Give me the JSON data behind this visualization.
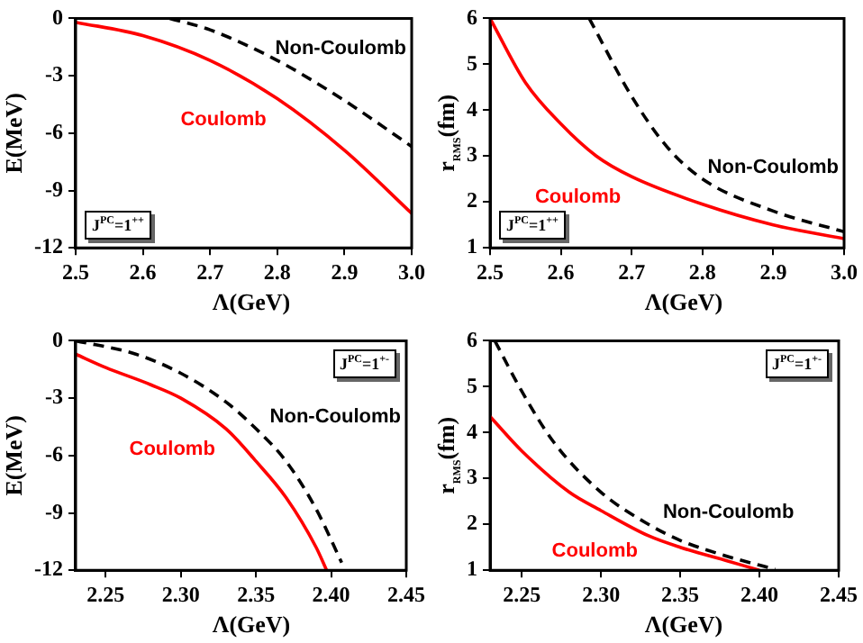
{
  "chart_data": [
    {
      "type": "line",
      "xlabel": "Λ(GeV)",
      "ylabel": "E(MeV)",
      "xlim": [
        2.5,
        3.0
      ],
      "ylim": [
        -12,
        0
      ],
      "xticks": [
        2.5,
        2.6,
        2.7,
        2.8,
        2.9,
        {
          "value": 3.0,
          "label": "3.0"
        }
      ],
      "yticks": [
        -12,
        -9,
        -6,
        -3,
        0
      ],
      "grid": false,
      "legend": false,
      "marker": "none",
      "annotations": [
        "J$^{PC}$=1$^{++}$"
      ],
      "series": [
        {
          "name": "Coulomb",
          "color": "#ff0000",
          "line_style": "solid",
          "x": [
            2.5,
            2.6,
            2.7,
            2.8,
            2.9,
            3.0
          ],
          "values": [
            -0.2,
            -0.9,
            -2.2,
            -4.2,
            -6.9,
            -10.2
          ]
        },
        {
          "name": "Non-Coulomb",
          "color": "#000000",
          "line_style": "dashed",
          "x": [
            2.64,
            2.7,
            2.8,
            2.9,
            3.0
          ],
          "values": [
            0,
            -0.6,
            -2.2,
            -4.3,
            -6.7
          ]
        }
      ]
    },
    {
      "type": "line",
      "xlabel": "Λ(GeV)",
      "ylabel": "r$_{RMS}$(fm)",
      "xlim": [
        2.5,
        3.0
      ],
      "ylim": [
        1,
        6
      ],
      "xticks": [
        2.5,
        2.6,
        2.7,
        2.8,
        2.9,
        {
          "value": 3.0,
          "label": "3.0"
        }
      ],
      "yticks": [
        1,
        2,
        3,
        4,
        5,
        6
      ],
      "grid": false,
      "legend": false,
      "marker": "none",
      "annotations": [
        "J$^{PC}$=1$^{++}$"
      ],
      "series": [
        {
          "name": "Coulomb",
          "color": "#ff0000",
          "line_style": "solid",
          "x": [
            2.5,
            2.55,
            2.6,
            2.65,
            2.7,
            2.8,
            2.9,
            3.0
          ],
          "values": [
            6.0,
            4.6,
            3.7,
            3.0,
            2.55,
            1.95,
            1.5,
            1.2
          ]
        },
        {
          "name": "Non-Coulomb",
          "color": "#000000",
          "line_style": "dashed",
          "x": [
            2.64,
            2.7,
            2.75,
            2.8,
            2.9,
            3.0
          ],
          "values": [
            6.0,
            4.3,
            3.2,
            2.5,
            1.8,
            1.35
          ]
        }
      ]
    },
    {
      "type": "line",
      "xlabel": "Λ(GeV)",
      "ylabel": "E(MeV)",
      "xlim": [
        2.23,
        2.45
      ],
      "ylim": [
        -12,
        0
      ],
      "xticks": [
        2.25,
        {
          "value": 2.3,
          "label": "2.30"
        },
        2.35,
        {
          "value": 2.4,
          "label": "2.40"
        },
        2.45
      ],
      "yticks": [
        -12,
        -9,
        -6,
        -3,
        0
      ],
      "grid": false,
      "legend": false,
      "marker": "none",
      "annotations": [
        "J$^{PC}$=1$^{+-}$"
      ],
      "series": [
        {
          "name": "Coulomb",
          "color": "#ff0000",
          "line_style": "solid",
          "x": [
            2.23,
            2.25,
            2.28,
            2.3,
            2.33,
            2.35,
            2.37,
            2.39,
            2.397
          ],
          "values": [
            -0.7,
            -1.4,
            -2.3,
            -3.0,
            -4.6,
            -6.3,
            -8.2,
            -10.8,
            -12
          ]
        },
        {
          "name": "Non-Coulomb",
          "color": "#000000",
          "line_style": "dashed",
          "x": [
            2.23,
            2.27,
            2.3,
            2.33,
            2.35,
            2.37,
            2.39,
            2.407
          ],
          "values": [
            0,
            -0.7,
            -1.7,
            -3.2,
            -4.6,
            -6.3,
            -8.8,
            -11.6
          ]
        }
      ]
    },
    {
      "type": "line",
      "xlabel": "Λ(GeV)",
      "ylabel": "r$_{RMS}$(fm)",
      "xlim": [
        2.23,
        2.45
      ],
      "ylim": [
        1,
        6
      ],
      "xticks": [
        2.25,
        {
          "value": 2.3,
          "label": "2.30"
        },
        2.35,
        {
          "value": 2.4,
          "label": "2.40"
        },
        2.45
      ],
      "yticks": [
        1,
        2,
        3,
        4,
        5,
        6
      ],
      "grid": false,
      "legend": false,
      "marker": "none",
      "annotations": [
        "J$^{PC}$=1$^{+-}$"
      ],
      "series": [
        {
          "name": "Coulomb",
          "color": "#ff0000",
          "line_style": "solid",
          "x": [
            2.23,
            2.25,
            2.28,
            2.3,
            2.33,
            2.35,
            2.38,
            2.4
          ],
          "values": [
            4.35,
            3.6,
            2.7,
            2.3,
            1.75,
            1.5,
            1.2,
            1.0
          ]
        },
        {
          "name": "Non-Coulomb",
          "color": "#000000",
          "line_style": "dashed",
          "x": [
            2.233,
            2.25,
            2.27,
            2.3,
            2.33,
            2.35,
            2.38,
            2.41
          ],
          "values": [
            6.0,
            4.9,
            3.8,
            2.7,
            2.0,
            1.65,
            1.3,
            1.02
          ]
        }
      ]
    }
  ]
}
